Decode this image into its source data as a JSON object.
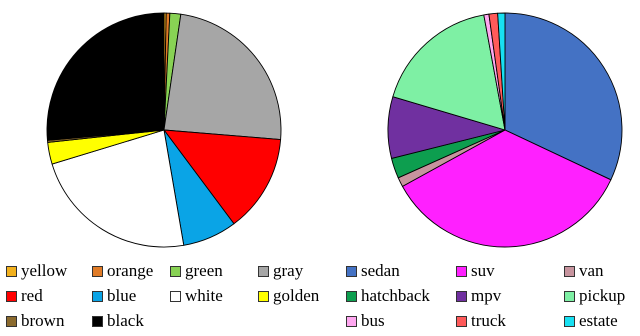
{
  "chart_data": [
    {
      "type": "pie",
      "series": [
        {
          "name": "yellow",
          "value": 0.3,
          "color": "#f2b11e"
        },
        {
          "name": "orange",
          "value": 0.5,
          "color": "#e07b27"
        },
        {
          "name": "green",
          "value": 1.5,
          "color": "#88d254"
        },
        {
          "name": "gray",
          "value": 24.0,
          "color": "#a6a6a6"
        },
        {
          "name": "red",
          "value": 13.5,
          "color": "#ff0000"
        },
        {
          "name": "blue",
          "value": 7.5,
          "color": "#0aa4e6"
        },
        {
          "name": "white",
          "value": 23.0,
          "color": "#ffffff"
        },
        {
          "name": "golden",
          "value": 3.0,
          "color": "#ffff00"
        },
        {
          "name": "brown",
          "value": 0.3,
          "color": "#8b6a2e"
        },
        {
          "name": "black",
          "value": 26.4,
          "color": "#000000"
        }
      ]
    },
    {
      "type": "pie",
      "series": [
        {
          "name": "sedan",
          "value": 32.0,
          "color": "#4472c4"
        },
        {
          "name": "suv",
          "value": 35.0,
          "color": "#ff20ff"
        },
        {
          "name": "van",
          "value": 1.3,
          "color": "#c7949e"
        },
        {
          "name": "hatchback",
          "value": 2.8,
          "color": "#0d9e4f"
        },
        {
          "name": "mpv",
          "value": 8.5,
          "color": "#7030a0"
        },
        {
          "name": "pickup",
          "value": 17.5,
          "color": "#7ef0a4"
        },
        {
          "name": "bus",
          "value": 0.7,
          "color": "#ffa7f0"
        },
        {
          "name": "truck",
          "value": 1.2,
          "color": "#ff5a5a"
        },
        {
          "name": "estate",
          "value": 1.0,
          "color": "#18e0f2"
        }
      ]
    }
  ]
}
